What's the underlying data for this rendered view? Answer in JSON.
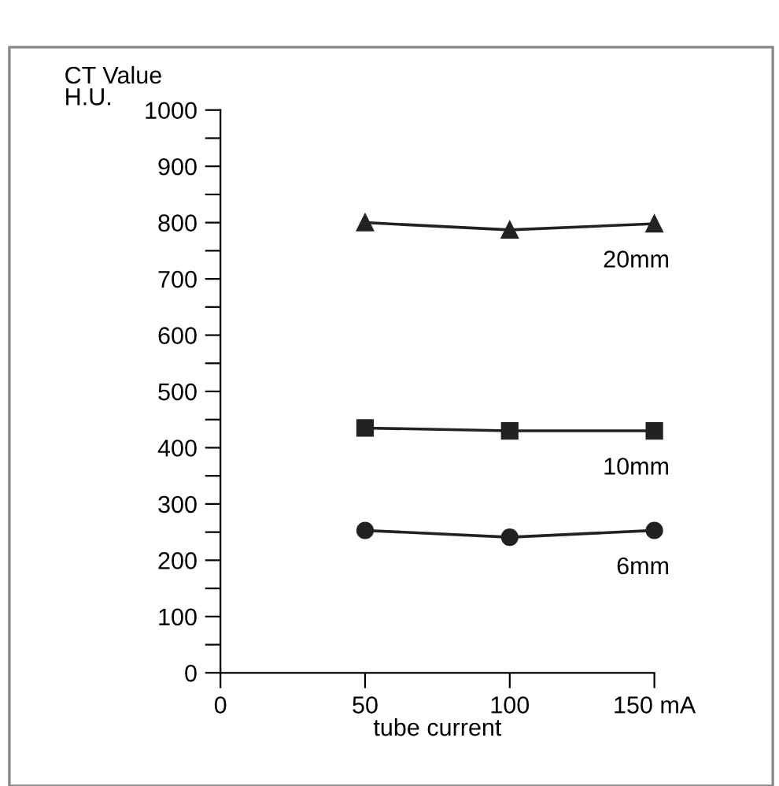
{
  "chart_data": {
    "type": "line",
    "ylabel": "CT Value\nH.U.",
    "xlabel": "tube current",
    "x": [
      50,
      100,
      150
    ],
    "series": [
      {
        "name": "20mm",
        "color": "#222222",
        "marker": "triangle",
        "values": [
          800,
          787,
          798
        ]
      },
      {
        "name": "10mm",
        "color": "#222222",
        "marker": "square",
        "values": [
          435,
          430,
          430
        ]
      },
      {
        "name": "6mm",
        "color": "#222222",
        "marker": "circle",
        "values": [
          253,
          241,
          253
        ]
      }
    ],
    "xlim": [
      0,
      150
    ],
    "xticks": [
      0,
      50,
      100,
      {
        "value": 150,
        "label": "150 mA"
      }
    ],
    "ylim": [
      0,
      1000
    ],
    "yticks": [
      0,
      {
        "value": 50,
        "label": null
      },
      100,
      {
        "value": 150,
        "label": null
      },
      200,
      {
        "value": 250,
        "label": null
      },
      300,
      {
        "value": 350,
        "label": null
      },
      400,
      {
        "value": 450,
        "label": null
      },
      500,
      {
        "value": 550,
        "label": null
      },
      600,
      {
        "value": 650,
        "label": null
      },
      700,
      {
        "value": 750,
        "label": null
      },
      800,
      {
        "value": 850,
        "label": null
      },
      900,
      {
        "value": 950,
        "label": null
      },
      1000
    ],
    "grid": false,
    "legend": false,
    "line_style": "solid"
  }
}
